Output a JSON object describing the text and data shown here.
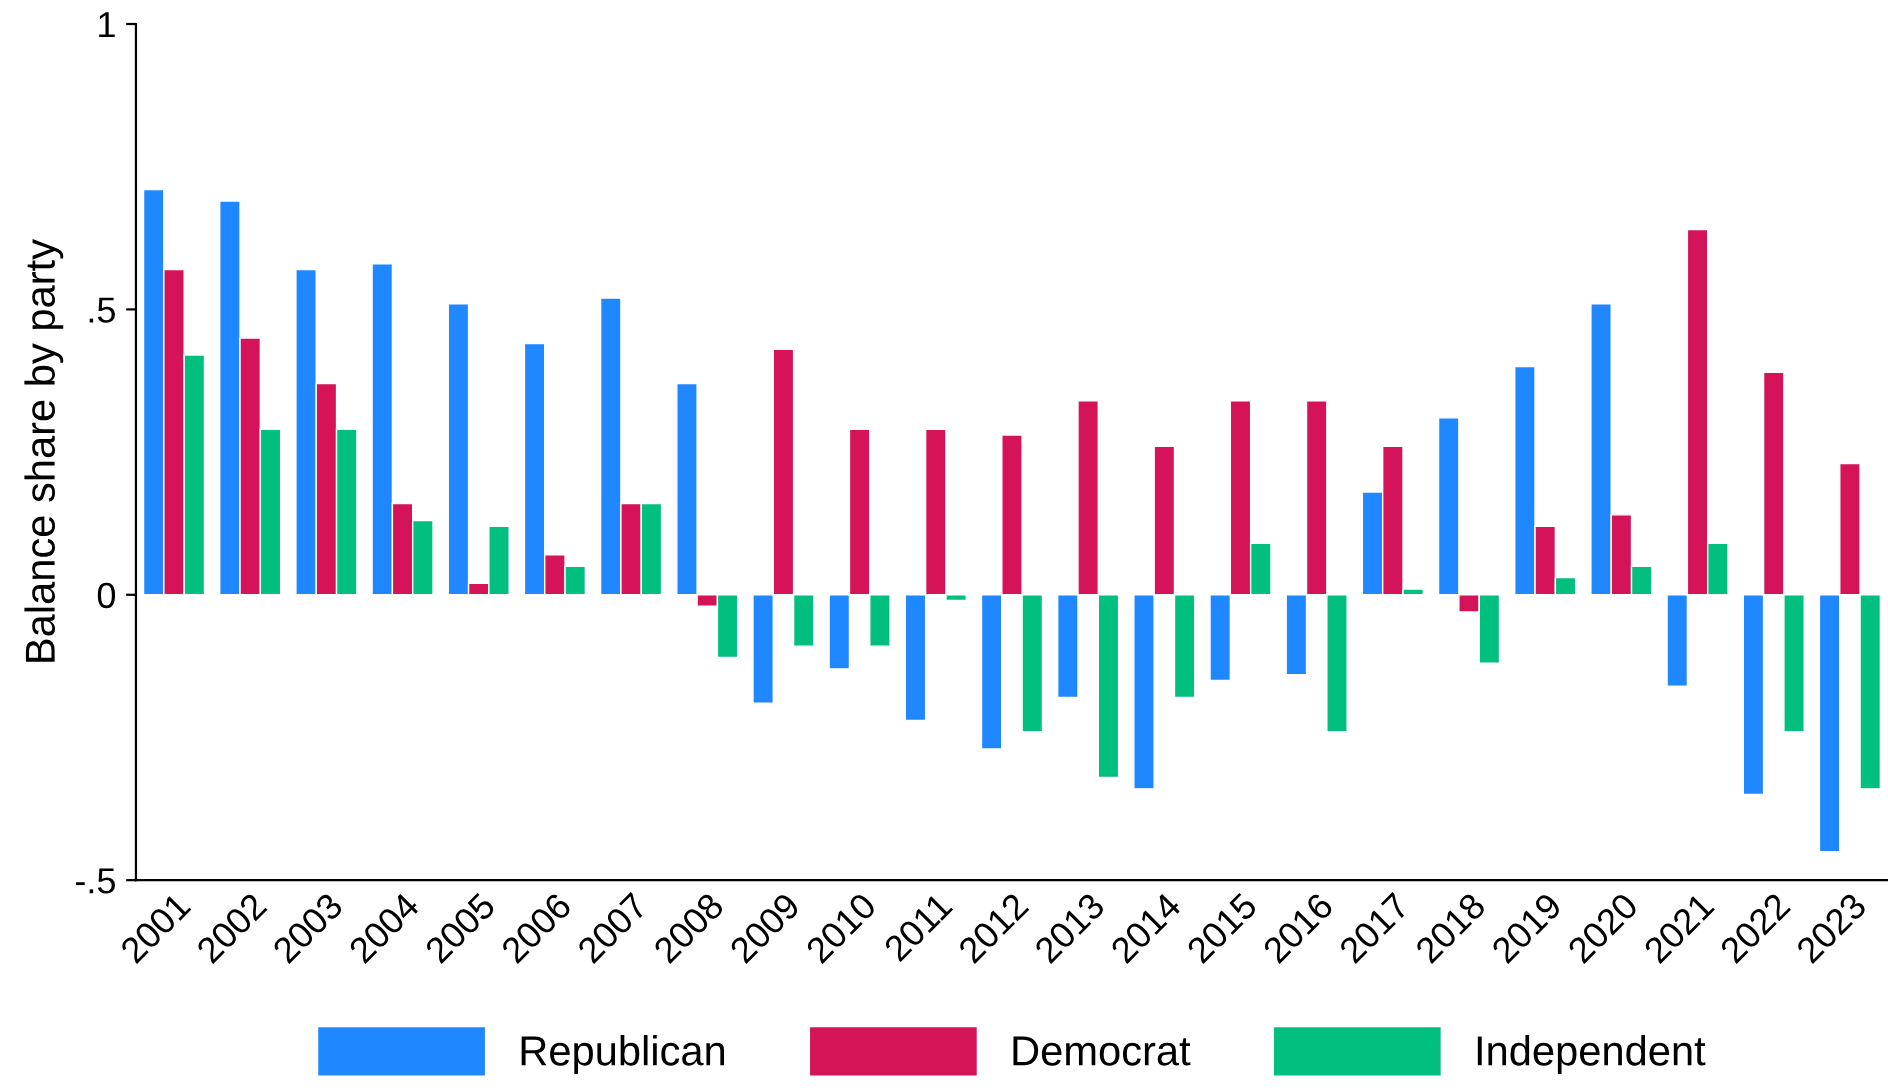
{
  "chart_data": {
    "type": "bar",
    "ylabel": "Balance share by party",
    "categories": [
      "2001",
      "2002",
      "2003",
      "2004",
      "2005",
      "2006",
      "2007",
      "2008",
      "2009",
      "2010",
      "2011",
      "2012",
      "2013",
      "2014",
      "2015",
      "2016",
      "2017",
      "2018",
      "2019",
      "2020",
      "2021",
      "2022",
      "2023"
    ],
    "series": [
      {
        "name": "Republican",
        "color": "#1f87ff",
        "values": [
          0.71,
          0.69,
          0.57,
          0.58,
          0.51,
          0.44,
          0.52,
          0.37,
          -0.19,
          -0.13,
          -0.22,
          -0.27,
          -0.18,
          -0.34,
          -0.15,
          -0.14,
          0.18,
          0.31,
          0.4,
          0.51,
          -0.16,
          -0.35,
          -0.45
        ]
      },
      {
        "name": "Democrat",
        "color": "#d41359",
        "values": [
          0.57,
          0.45,
          0.37,
          0.16,
          0.02,
          0.07,
          0.16,
          -0.02,
          0.43,
          0.29,
          0.29,
          0.28,
          0.34,
          0.26,
          0.34,
          0.34,
          0.26,
          -0.03,
          0.12,
          0.14,
          0.64,
          0.39,
          0.23
        ]
      },
      {
        "name": "Independent",
        "color": "#00bf7f",
        "values": [
          0.42,
          0.29,
          0.29,
          0.13,
          0.12,
          0.05,
          0.16,
          -0.11,
          -0.09,
          -0.09,
          -0.01,
          -0.24,
          -0.32,
          -0.18,
          0.09,
          -0.24,
          0.01,
          -0.12,
          0.03,
          0.05,
          0.09,
          -0.24,
          -0.34
        ]
      }
    ],
    "ylim": [
      -0.5,
      1
    ],
    "yticks": [
      {
        "value": -0.5,
        "label": "-.5"
      },
      0,
      {
        "value": 0.5,
        "label": ".5"
      },
      1
    ],
    "legend": "bottom",
    "grid": false
  }
}
